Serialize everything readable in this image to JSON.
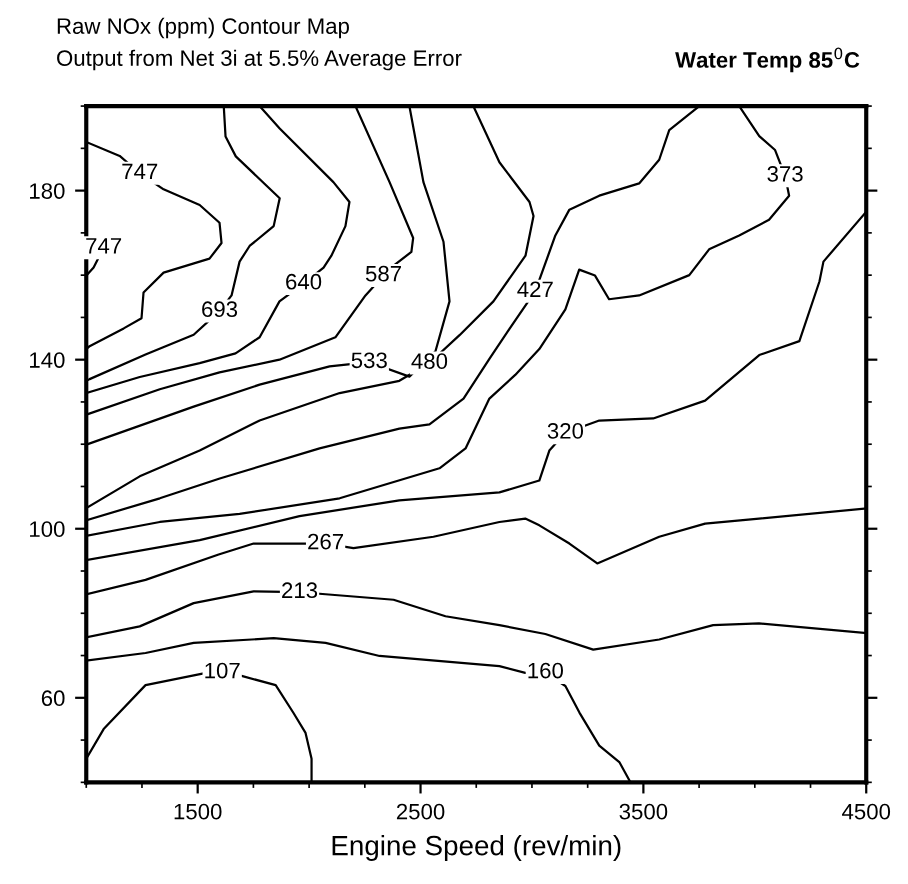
{
  "chart_data": {
    "type": "line",
    "title": "Raw NOx (ppm) Contour Map",
    "subtitle": "Output from Net 3i at 5.5% Average Error",
    "xlabel": "Engine Speed (rev/min)",
    "xlim": [
      1000,
      4500
    ],
    "xticks": [
      1500,
      2500,
      3500,
      4500
    ],
    "ylim": [
      40,
      200
    ],
    "yticks": [
      60,
      100,
      140,
      180
    ],
    "grid": false,
    "marker": "none",
    "line_style": "solid",
    "series": [
      {
        "color": "#000000",
        "x": [
          1000,
          1078,
          1266,
          1527,
          1689,
          1850,
          1930,
          1984,
          2011,
          2011
        ],
        "values": [
          45.6,
          52.6,
          63,
          65.8,
          65.3,
          63,
          56.4,
          51.7,
          45.6,
          40
        ]
      },
      {
        "color": "#000000",
        "x": [
          1000,
          1266,
          1482,
          1841,
          2074,
          2316,
          2854,
          2970,
          3060,
          3150,
          3213,
          3302,
          3392,
          3437
        ],
        "values": [
          68.8,
          70.6,
          73,
          74.1,
          73,
          69.9,
          67.5,
          65.9,
          65.9,
          62.8,
          56.5,
          48.7,
          44.8,
          40.5
        ]
      },
      {
        "color": "#000000",
        "x": [
          1000,
          1240,
          1482,
          1751,
          1957,
          2074,
          2379,
          2612,
          2854,
          3060,
          3275,
          3571,
          3813,
          4019,
          4500
        ],
        "values": [
          74.3,
          76.9,
          82.4,
          85.2,
          85,
          84.5,
          83.2,
          79.3,
          77.2,
          75.1,
          71.4,
          73.8,
          77.2,
          77.6,
          75.3
        ]
      },
      {
        "color": "#000000",
        "x": [
          1000,
          1266,
          1594,
          1751,
          2074,
          2199,
          2558,
          2854,
          2970,
          3033,
          3168,
          3293,
          3571,
          3777,
          4019,
          4500
        ],
        "values": [
          84.5,
          87.9,
          93.9,
          96.5,
          96.5,
          95.4,
          98.1,
          101.6,
          102.4,
          100.8,
          96.5,
          91.8,
          98.1,
          101.2,
          102.4,
          104.8
        ]
      },
      {
        "color": "#000000",
        "x": [
          1000,
          1509,
          1957,
          2405,
          2854,
          3033,
          3078,
          3150,
          3302,
          3544,
          3777,
          4020,
          4200,
          4290,
          4308,
          4500
        ],
        "values": [
          92.6,
          97.3,
          103,
          106.7,
          108.6,
          111.4,
          118.5,
          122.7,
          125.6,
          126.1,
          130.3,
          141.1,
          144.4,
          158.5,
          163.2,
          175
        ]
      },
      {
        "color": "#000000",
        "x": [
          1000,
          1330,
          1688,
          2137,
          2585,
          2702,
          2809,
          2925,
          3033,
          3150,
          3212,
          3283,
          3346,
          3481,
          3706,
          3795,
          3930,
          4064,
          4154,
          4136,
          4091,
          4020,
          3930
        ],
        "values": [
          98.3,
          101.6,
          103.5,
          107.2,
          114.3,
          119,
          130.8,
          136.4,
          142.5,
          151.9,
          161.3,
          159.9,
          154.3,
          155.2,
          160,
          166.1,
          169.4,
          173.1,
          178.8,
          183.5,
          189.6,
          192.9,
          200
        ]
      },
      {
        "color": "#000000",
        "x": [
          1000,
          1330,
          1599,
          2047,
          2405,
          2540,
          2693,
          2809,
          2899,
          3015,
          3105,
          3168,
          3302,
          3481,
          3571,
          3616,
          3751
        ],
        "values": [
          102,
          107.2,
          111.9,
          119,
          123.7,
          124.7,
          130.8,
          140.2,
          147.3,
          156.2,
          169.4,
          175.5,
          178.8,
          181.7,
          187.3,
          194.3,
          200
        ]
      },
      {
        "color": "#000000",
        "x": [
          1000,
          1240,
          1509,
          1778,
          2137,
          2405,
          2540,
          2675,
          2827,
          2971,
          3007,
          2989,
          2854,
          2737
        ],
        "values": [
          104.9,
          112.4,
          118.5,
          125.6,
          132.1,
          135,
          139.2,
          145.8,
          153.8,
          164.6,
          174,
          177.3,
          186.7,
          200
        ]
      },
      {
        "color": "#000000",
        "x": [
          1000,
          1482,
          1778,
          2092,
          2270,
          2450,
          2567,
          2630,
          2603,
          2513,
          2450
        ],
        "values": [
          119.9,
          128.9,
          134.1,
          138.4,
          139.4,
          136,
          142,
          153.8,
          167.9,
          182,
          200
        ]
      },
      {
        "color": "#000000",
        "x": [
          1000,
          1330,
          1598,
          1867,
          2118,
          2253,
          2334,
          2343,
          2459,
          2467,
          2361,
          2208
        ],
        "values": [
          127,
          133,
          137,
          140,
          145.3,
          155.2,
          159.9,
          160.8,
          165.5,
          168.8,
          182,
          200
        ]
      },
      {
        "color": "#000000",
        "x": [
          1000,
          1240,
          1509,
          1670,
          1778,
          1867,
          1975,
          2065,
          2100,
          2163,
          2181,
          2109,
          1868,
          1778
        ],
        "values": [
          132.1,
          135.9,
          139.2,
          141.5,
          145.3,
          153.8,
          158,
          161.8,
          164.6,
          171.6,
          177.3,
          182,
          194.7,
          200
        ]
      },
      {
        "color": "#000000",
        "x": [
          1000,
          1015,
          1266,
          1482,
          1598,
          1652,
          1688,
          1733,
          1841,
          1868,
          1671,
          1625,
          1617
        ],
        "values": [
          135,
          135.4,
          141.2,
          145.9,
          151.5,
          155.2,
          163.2,
          166.9,
          171.6,
          178.2,
          188.1,
          192.8,
          200
        ]
      },
      {
        "color": "#000000",
        "x": [
          1000,
          1015,
          1168,
          1248,
          1257,
          1347,
          1553,
          1607,
          1598,
          1509,
          1347,
          1240,
          1150,
          1000
        ],
        "values": [
          142.5,
          143.2,
          147.4,
          149.8,
          155.9,
          160.6,
          163.9,
          167.6,
          172.4,
          176.6,
          180.3,
          184.1,
          188.2,
          191.5
        ]
      },
      {
        "color": "#000000",
        "x": [
          1078,
          1033,
          1000
        ],
        "values": [
          166.5,
          161.8,
          159.9
        ]
      }
    ],
    "annotations": [
      {
        "text": "107",
        "x": 1610,
        "y": 66
      },
      {
        "text": "160",
        "x": 3060,
        "y": 66
      },
      {
        "text": "213",
        "x": 1957,
        "y": 85
      },
      {
        "text": "267",
        "x": 2074,
        "y": 96.5
      },
      {
        "text": "320",
        "x": 3150,
        "y": 122.7
      },
      {
        "text": "373",
        "x": 4136,
        "y": 183.5
      },
      {
        "text": "427",
        "x": 3015,
        "y": 156.2
      },
      {
        "text": "480",
        "x": 2540,
        "y": 139.2
      },
      {
        "text": "533",
        "x": 2270,
        "y": 139.4
      },
      {
        "text": "587",
        "x": 2334,
        "y": 159.9
      },
      {
        "text": "640",
        "x": 1975,
        "y": 158
      },
      {
        "text": "693",
        "x": 1598,
        "y": 151.5
      },
      {
        "text": "747",
        "x": 1240,
        "y": 184.1
      },
      {
        "text": "747",
        "x": 1078,
        "y": 166.5
      },
      "Water Temp 85$^{0}$C"
    ]
  }
}
